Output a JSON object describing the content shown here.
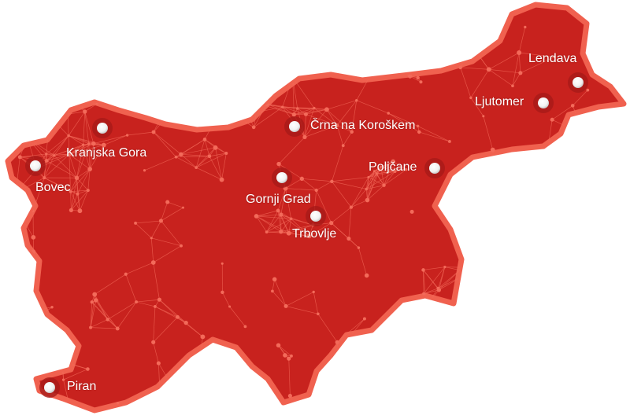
{
  "map": {
    "colors": {
      "fill": "#c8221e",
      "border": "#f0614f",
      "network": "#f36a5a",
      "marker": "#ffffff"
    },
    "cities": [
      {
        "name": "Bovec"
      },
      {
        "name": "Kranjska Gora"
      },
      {
        "name": "Črna na Koroškem"
      },
      {
        "name": "Gornji Grad"
      },
      {
        "name": "Trbovlje"
      },
      {
        "name": "Poljčane"
      },
      {
        "name": "Ljutomer"
      },
      {
        "name": "Lendava"
      },
      {
        "name": "Piran"
      }
    ]
  }
}
